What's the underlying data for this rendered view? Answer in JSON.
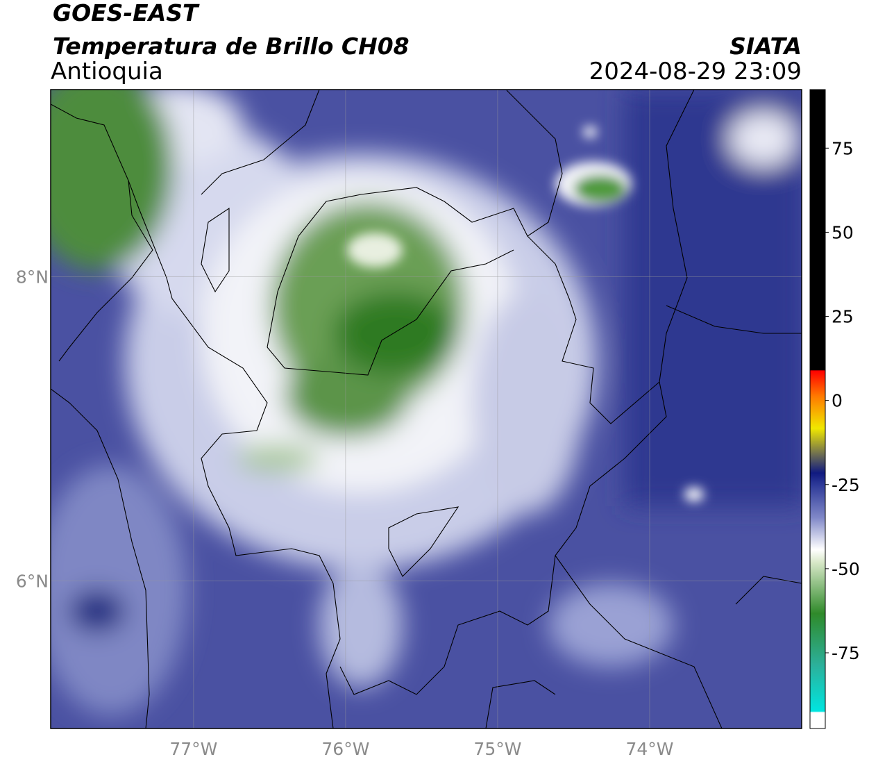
{
  "header": {
    "title": "GOES-EAST",
    "subtitle": "Temperatura de Brillo CH08",
    "region": "Antioquia",
    "source": "SIATA",
    "datetime": "2024-08-29 23:09"
  },
  "map": {
    "xlim": [
      -77.94,
      -73.0
    ],
    "ylim": [
      5.03,
      9.23
    ],
    "xticks": [
      {
        "value": -77,
        "label": "77°W"
      },
      {
        "value": -76,
        "label": "76°W"
      },
      {
        "value": -75,
        "label": "75°W"
      },
      {
        "value": -74,
        "label": "74°W"
      }
    ],
    "yticks": [
      {
        "value": 8,
        "label": "8°N"
      },
      {
        "value": 6,
        "label": "6°N"
      }
    ],
    "grid": true
  },
  "colorbar": {
    "lim": [
      -97.5,
      92.4
    ],
    "ticks": [
      75,
      50,
      25,
      0,
      -25,
      -50,
      -75
    ]
  }
}
